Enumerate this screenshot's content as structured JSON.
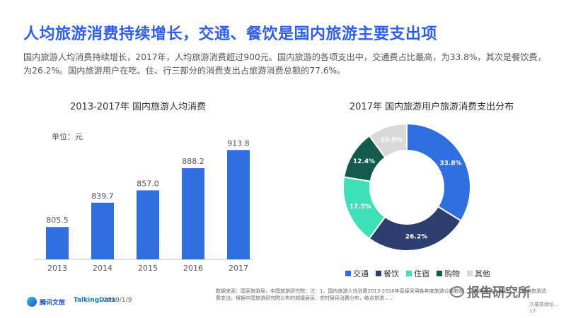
{
  "header": {
    "title": "人均旅游消费持续增长，交通、餐饮是国内旅游主要支出项",
    "description": "国内旅游人均消费持续增长，2017年，人均旅游消费超过900元。国内旅游的各项支出中，交通费占比最高，为33.8%，其次是餐饮费，为26.2%。国内旅游用户在吃、住、行三部分的消费支出占旅游消费总额的77.6%。"
  },
  "chart_data": [
    {
      "type": "bar",
      "title": "2013-2017年 国内旅游人均消费",
      "unit_label": "单位：元",
      "categories": [
        "2013",
        "2014",
        "2015",
        "2016",
        "2017"
      ],
      "values": [
        805.5,
        839.7,
        857.0,
        888.2,
        913.8
      ],
      "value_labels": [
        "805.5",
        "839.7",
        "857.0",
        "888.2",
        "913.8"
      ],
      "color": "#2f6fe0",
      "ylim": [
        760,
        925
      ],
      "grid": false
    },
    {
      "type": "pie",
      "title": "2017年 国内旅游用户旅游消费支出分布",
      "series": [
        {
          "name": "交通",
          "value": 33.8,
          "label": "33.8%",
          "color": "#2f6fe0"
        },
        {
          "name": "餐饮",
          "value": 26.2,
          "label": "26.2%",
          "color": "#2d3e6e"
        },
        {
          "name": "住宿",
          "value": 17.5,
          "label": "17.5%",
          "color": "#3ee0b8"
        },
        {
          "name": "购物",
          "value": 12.4,
          "label": "12.4%",
          "color": "#125a4e"
        },
        {
          "name": "其他",
          "value": 10.0,
          "label": "10.0%",
          "color": "#d9d9d9"
        }
      ],
      "legend_position": "bottom"
    }
  ],
  "footer": {
    "source_text": "数据来源：国家旅游局，中国旅游研究院；注：1、国内旅游人均消费2013-2016年直接采用各年度旅游公报数据……和旅游收入编辞；2、国内旅游消费支出，根据中国旅游研究院公布的城镇居民、农村居民消费分布，结合旅游……",
    "logo1": "腾讯文旅",
    "logo2": "TalkingData",
    "date": "2019/1/9",
    "page_number": "次樓算網址... 13"
  },
  "watermark": {
    "text": "报告研究所"
  }
}
